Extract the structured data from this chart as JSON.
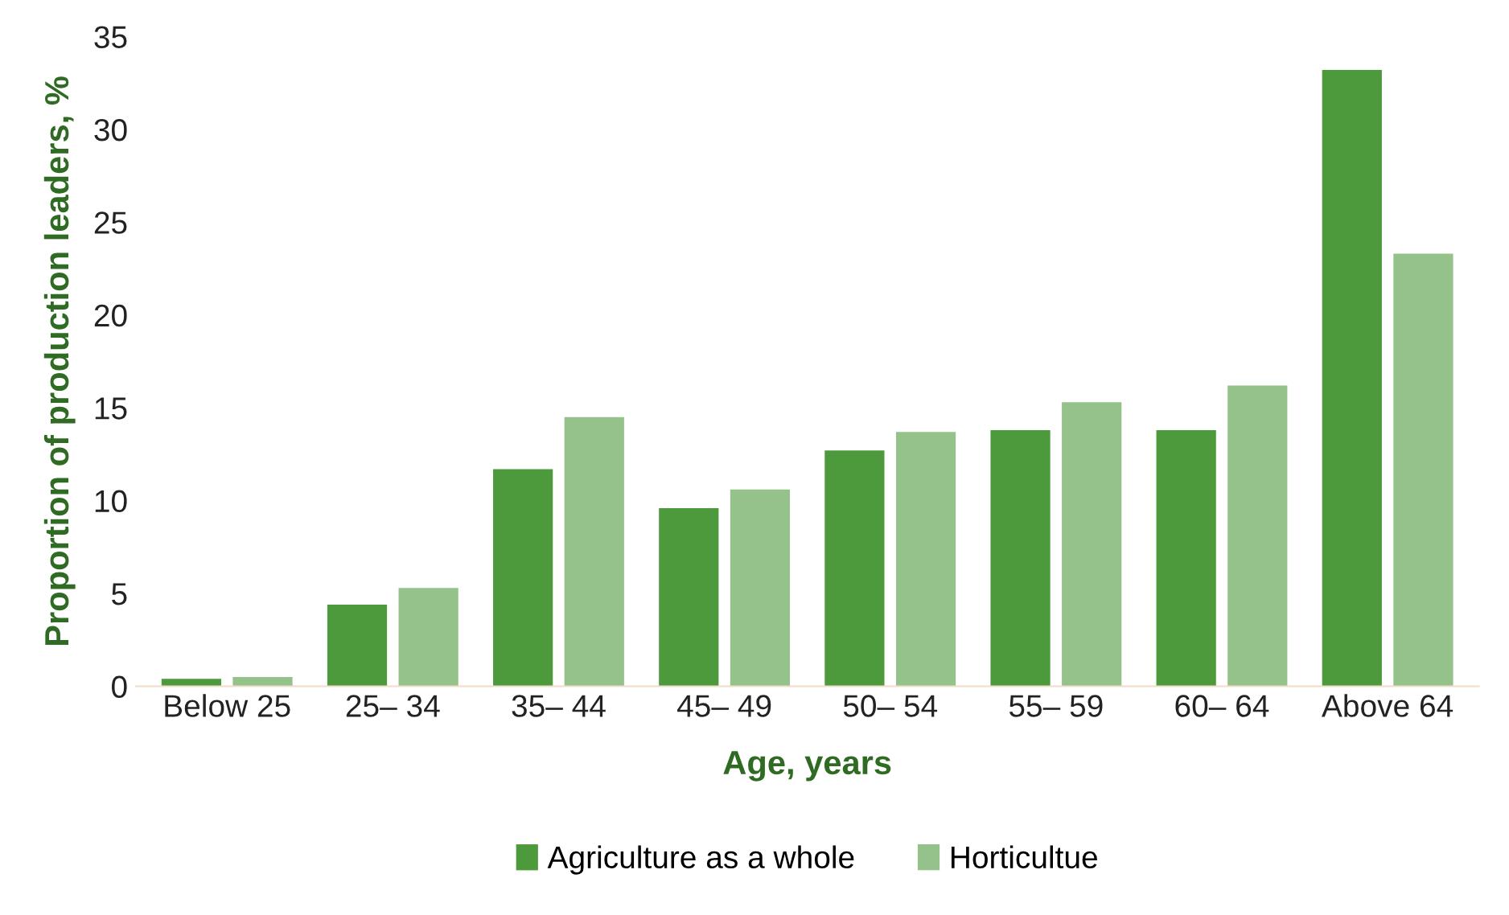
{
  "chart_data": {
    "type": "bar",
    "xlabel": "Age, years",
    "ylabel": "Proportion of production leaders, %",
    "categories": [
      "Below 25",
      "25– 34",
      "35– 44",
      "45– 49",
      "50– 54",
      "55– 59",
      "60– 64",
      "Above 64"
    ],
    "series": [
      {
        "name": "Agriculture as a whole",
        "color": "#4c9a3c",
        "values": [
          0.4,
          4.4,
          11.7,
          9.6,
          12.7,
          13.8,
          13.8,
          33.2
        ]
      },
      {
        "name": "Horticultue",
        "color": "#94c28a",
        "values": [
          0.5,
          5.3,
          14.5,
          10.6,
          13.7,
          15.3,
          16.2,
          23.3
        ]
      }
    ],
    "ylim": [
      0,
      35
    ],
    "yticks": [
      0,
      5,
      10,
      15,
      20,
      25,
      30,
      35
    ],
    "grid": false,
    "legend": "bottom"
  }
}
